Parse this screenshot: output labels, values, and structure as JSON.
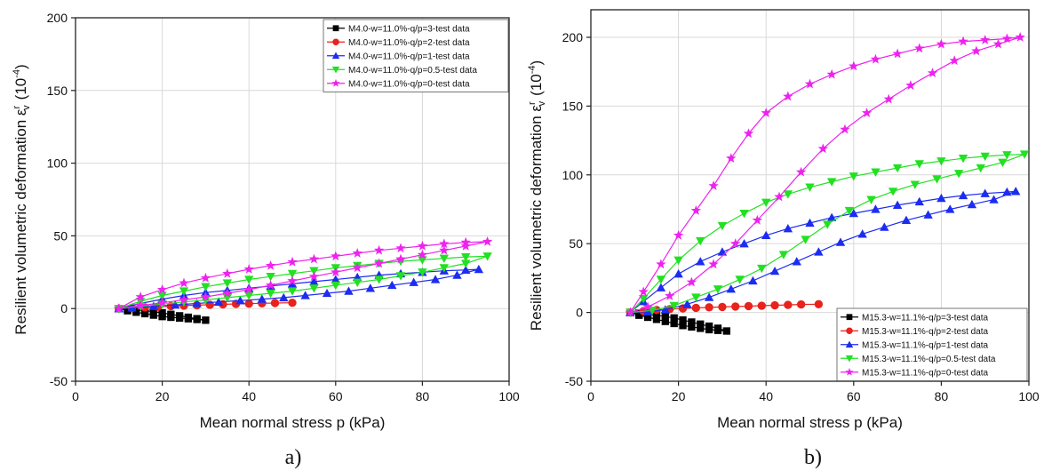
{
  "chart_data": [
    {
      "type": "line",
      "panel_label": "a)",
      "xlabel": "Mean normal stress p (kPa)",
      "ylabel": "Resilient volumetric deformation ε",
      "ylabel_sup": "r",
      "ylabel_sub": "v",
      "ylabel_unit": "(10",
      "ylabel_unit_sup": "-4",
      "ylabel_unit_close": ")",
      "xlim": [
        0,
        100
      ],
      "ylim": [
        -50,
        200
      ],
      "xticks": [
        "0",
        "20",
        "40",
        "60",
        "80",
        "100"
      ],
      "yticks": [
        "-50",
        "0",
        "50",
        "100",
        "150",
        "200"
      ],
      "grid": true,
      "legend_position": "top-right",
      "series": [
        {
          "name": "M4.0-w=11.0%-q/p=3-test data",
          "color": "#000000",
          "marker": "square",
          "x": [
            10,
            12,
            14,
            16,
            18,
            20,
            22,
            24,
            26,
            28,
            30,
            28,
            26,
            24,
            22,
            20,
            18,
            16,
            14,
            12,
            10
          ],
          "y": [
            0,
            -1.5,
            -2.5,
            -3.5,
            -4.5,
            -5.5,
            -6,
            -6.5,
            -7,
            -7.5,
            -8,
            -7,
            -6,
            -5,
            -4,
            -3,
            -2,
            -1.5,
            -1,
            -0.5,
            0
          ]
        },
        {
          "name": "M4.0-w=11.0%-q/p=2-test data",
          "color": "#e8221c",
          "marker": "circle",
          "x": [
            10,
            13,
            16,
            19,
            22,
            25,
            28,
            31,
            34,
            37,
            40,
            43,
            46,
            50
          ],
          "y": [
            0,
            0.4,
            0.8,
            1.2,
            1.6,
            2,
            2.3,
            2.6,
            2.9,
            3.2,
            3.4,
            3.6,
            3.8,
            4
          ]
        },
        {
          "name": "M4.0-w=11.0%-q/p=1-test data",
          "color": "#1c2cf0",
          "marker": "triangle-up",
          "x": [
            10,
            15,
            20,
            25,
            30,
            35,
            40,
            45,
            50,
            55,
            60,
            65,
            70,
            75,
            80,
            85,
            90,
            93,
            88,
            83,
            78,
            73,
            68,
            63,
            58,
            53,
            48,
            43,
            38,
            33,
            28,
            23,
            18,
            13,
            10
          ],
          "y": [
            0,
            3.5,
            6.5,
            9,
            11,
            12.5,
            14,
            15.5,
            17,
            18.5,
            20,
            21.5,
            23,
            24,
            25,
            26,
            26.5,
            27,
            23,
            20,
            18,
            16,
            14,
            12,
            10.5,
            9,
            7.5,
            6.5,
            5.5,
            4.5,
            3.5,
            2.5,
            1.5,
            0.5,
            0
          ]
        },
        {
          "name": "M4.0-w=11.0%-q/p=0.5-test data",
          "color": "#22e022",
          "marker": "triangle-down",
          "x": [
            10,
            15,
            20,
            25,
            30,
            35,
            40,
            45,
            50,
            55,
            60,
            65,
            70,
            75,
            80,
            85,
            90,
            95,
            90,
            85,
            80,
            75,
            70,
            65,
            60,
            55,
            50,
            45,
            40,
            35,
            30,
            25,
            20,
            15,
            10
          ],
          "y": [
            0,
            5,
            9,
            12,
            15,
            17.5,
            20,
            22,
            24,
            26,
            28,
            29.5,
            31,
            32.5,
            33.5,
            34.5,
            35.5,
            36,
            31,
            28,
            25,
            22.5,
            20,
            18,
            16,
            14,
            12,
            10.5,
            9,
            7.5,
            6,
            4.5,
            3,
            1.5,
            0
          ]
        },
        {
          "name": "M4.0-w=11.0%-q/p=0-test data",
          "color": "#ee22ee",
          "marker": "star",
          "x": [
            10,
            15,
            20,
            25,
            30,
            35,
            40,
            45,
            50,
            55,
            60,
            65,
            70,
            75,
            80,
            85,
            90,
            95,
            90,
            85,
            80,
            75,
            70,
            65,
            60,
            55,
            50,
            45,
            40,
            35,
            30,
            25,
            20,
            15,
            10
          ],
          "y": [
            0,
            8,
            13,
            17.5,
            21,
            24,
            27,
            29.5,
            32,
            34,
            36,
            38,
            40,
            41.5,
            43,
            44.5,
            45.5,
            46,
            43,
            40,
            37,
            34,
            31,
            28,
            25,
            22,
            19,
            16,
            13,
            10.5,
            8,
            6,
            4,
            2,
            0
          ]
        }
      ]
    },
    {
      "type": "line",
      "panel_label": "b)",
      "xlabel": "Mean normal stress p (kPa)",
      "ylabel": "Resilient volumetric deformation ε",
      "ylabel_sup": "r",
      "ylabel_sub": "v",
      "ylabel_unit": "(10",
      "ylabel_unit_sup": "-4",
      "ylabel_unit_close": ")",
      "xlim": [
        0,
        100
      ],
      "ylim": [
        -50,
        220
      ],
      "xticks": [
        "0",
        "20",
        "40",
        "60",
        "80",
        "100"
      ],
      "yticks": [
        "-50",
        "0",
        "50",
        "100",
        "150",
        "200"
      ],
      "grid": true,
      "legend_position": "bottom-right",
      "series": [
        {
          "name": "M15.3-w=11.1%-q/p=3-test data",
          "color": "#000000",
          "marker": "square",
          "x": [
            9,
            11,
            13,
            15,
            17,
            19,
            21,
            23,
            25,
            27,
            29,
            31,
            29,
            27,
            25,
            23,
            21,
            19,
            17,
            15,
            13,
            11,
            9
          ],
          "y": [
            0,
            -2,
            -3.5,
            -5,
            -6.5,
            -8,
            -9.5,
            -10.5,
            -11.5,
            -12.5,
            -13,
            -13.5,
            -11.5,
            -10,
            -8.5,
            -7,
            -5.5,
            -4,
            -3,
            -2,
            -1.5,
            -0.5,
            0
          ]
        },
        {
          "name": "M15.3-w=11.1%-q/p=2-test data",
          "color": "#e8221c",
          "marker": "circle",
          "x": [
            9,
            12,
            15,
            18,
            21,
            24,
            27,
            30,
            33,
            36,
            39,
            42,
            45,
            48,
            52
          ],
          "y": [
            0,
            1,
            1.8,
            2.4,
            2.9,
            3.3,
            3.7,
            4,
            4.3,
            4.6,
            4.9,
            5.2,
            5.5,
            5.8,
            6
          ]
        },
        {
          "name": "M15.3-w=11.1%-q/p=1-test data",
          "color": "#1c2cf0",
          "marker": "triangle-up",
          "x": [
            9,
            12,
            16,
            20,
            25,
            30,
            35,
            40,
            45,
            50,
            55,
            60,
            65,
            70,
            75,
            80,
            85,
            90,
            95,
            97,
            92,
            87,
            82,
            77,
            72,
            67,
            62,
            57,
            52,
            47,
            42,
            37,
            32,
            27,
            22,
            17,
            13,
            9
          ],
          "y": [
            0,
            8,
            18,
            28,
            37,
            44,
            50,
            56,
            61,
            65,
            69,
            72,
            75,
            78,
            80.5,
            83,
            85,
            86.5,
            87.5,
            88,
            82,
            78.5,
            75,
            71,
            67,
            62,
            57,
            51,
            44,
            37,
            30,
            23,
            17,
            11,
            6,
            2,
            0.5,
            0
          ]
        },
        {
          "name": "M15.3-w=11.1%-q/p=0.5-test data",
          "color": "#22e022",
          "marker": "triangle-down",
          "x": [
            9,
            12,
            16,
            20,
            25,
            30,
            35,
            40,
            45,
            50,
            55,
            60,
            65,
            70,
            75,
            80,
            85,
            90,
            95,
            99,
            94,
            89,
            84,
            79,
            74,
            69,
            64,
            59,
            54,
            49,
            44,
            39,
            34,
            29,
            24,
            19,
            14,
            9
          ],
          "y": [
            0,
            10,
            24,
            38,
            52,
            63,
            72,
            80,
            86,
            91,
            95,
            99,
            102,
            105,
            108,
            110,
            112,
            113.5,
            114.5,
            115,
            109,
            105,
            101,
            97,
            93,
            88,
            82,
            74,
            64,
            53,
            42,
            32,
            24,
            17,
            11,
            5,
            1.5,
            0
          ]
        },
        {
          "name": "M15.3-w=11.1%-q/p=0-test data",
          "color": "#ee22ee",
          "marker": "star",
          "x": [
            9,
            12,
            16,
            20,
            24,
            28,
            32,
            36,
            40,
            45,
            50,
            55,
            60,
            65,
            70,
            75,
            80,
            85,
            90,
            95,
            98,
            93,
            88,
            83,
            78,
            73,
            68,
            63,
            58,
            53,
            48,
            43,
            38,
            33,
            28,
            23,
            18,
            13,
            9
          ],
          "y": [
            0,
            15,
            35,
            56,
            74,
            92,
            112,
            130,
            145,
            157,
            166,
            173,
            179,
            184,
            188,
            192,
            195,
            197,
            198,
            199,
            200,
            195,
            190,
            183,
            174,
            165,
            155,
            145,
            133,
            119,
            102,
            84,
            67,
            50,
            35,
            22,
            12,
            4,
            0
          ]
        }
      ]
    }
  ]
}
